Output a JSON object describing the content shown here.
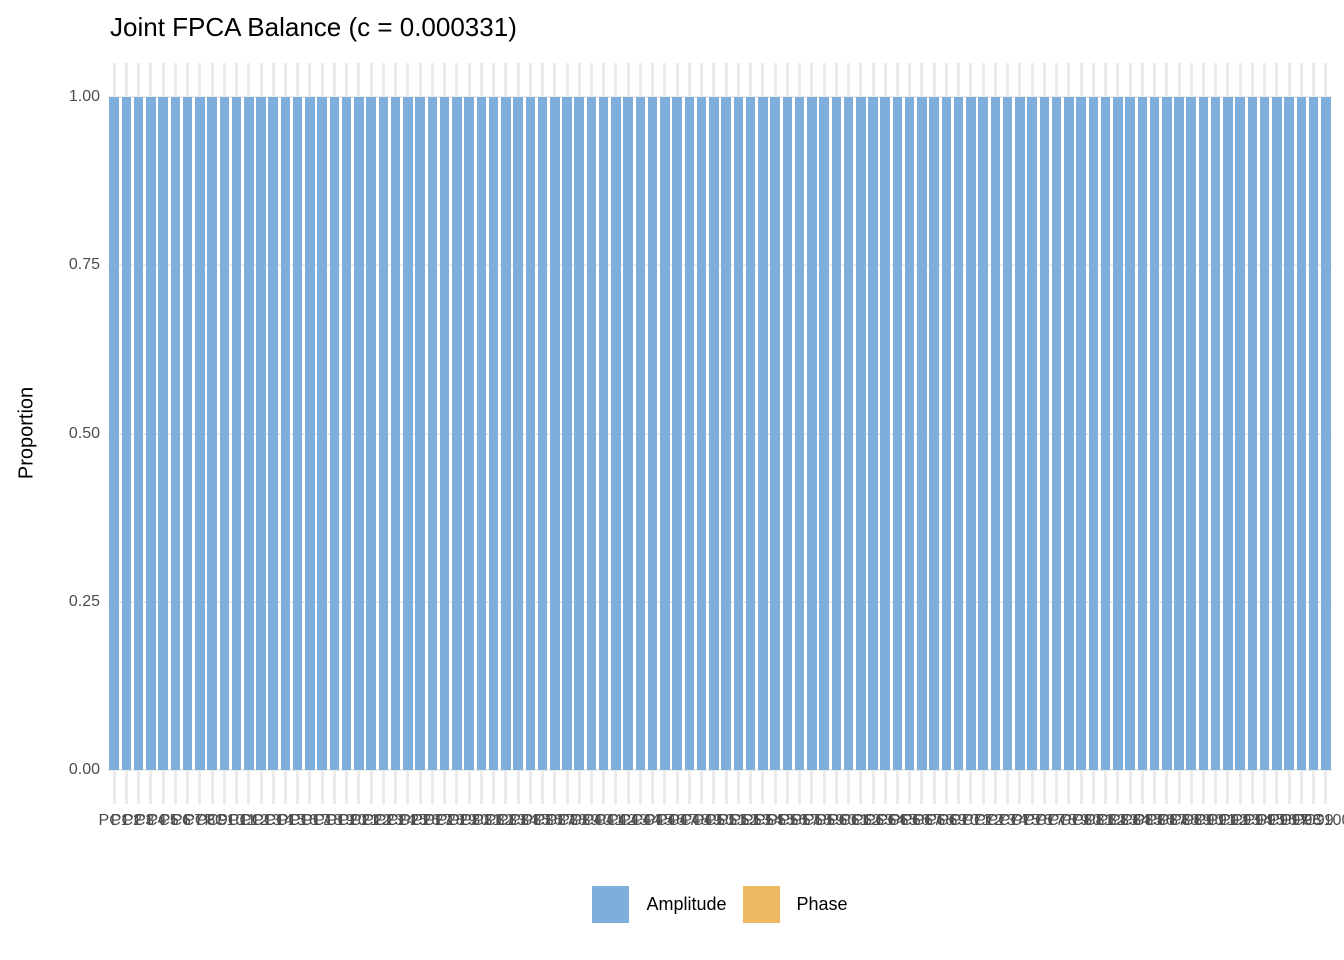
{
  "title": "Joint FPCA Balance (c = 0.000331)",
  "axes": {
    "y_title": "Proportion",
    "x_title": "",
    "y_tick_labels": [
      "0.00",
      "0.25",
      "0.50",
      "0.75",
      "1.00"
    ]
  },
  "legend": {
    "position": "bottom",
    "items": [
      {
        "label": "Amplitude",
        "color": "#7eaedc"
      },
      {
        "label": "Phase",
        "color": "#edb962"
      }
    ]
  },
  "colors": {
    "amplitude": "#7eaedc",
    "phase": "#edb962",
    "gridline": "#ebebeb",
    "tick_text": "#4d4d4d",
    "title_text": "#000000",
    "background": "#ffffff"
  },
  "chart_data": {
    "type": "bar",
    "stacked": true,
    "title": "Joint FPCA Balance (c = 0.000331)",
    "xlabel": "",
    "ylabel": "Proportion",
    "ylim": [
      0,
      1
    ],
    "y_breaks": [
      0,
      0.25,
      0.5,
      0.75,
      1
    ],
    "grid": true,
    "legend_position": "bottom",
    "categories": [
      "PC1",
      "PC2",
      "PC3",
      "PC4",
      "PC5",
      "PC6",
      "PC7",
      "PC8",
      "PC9",
      "PC10",
      "PC11",
      "PC12",
      "PC13",
      "PC14",
      "PC15",
      "PC16",
      "PC17",
      "PC18",
      "PC19",
      "PC20",
      "PC21",
      "PC22",
      "PC23",
      "PC24",
      "PC25",
      "PC26",
      "PC27",
      "PC28",
      "PC29",
      "PC30",
      "PC31",
      "PC32",
      "PC33",
      "PC34",
      "PC35",
      "PC36",
      "PC37",
      "PC38",
      "PC39",
      "PC40",
      "PC41",
      "PC42",
      "PC43",
      "PC44",
      "PC45",
      "PC46",
      "PC47",
      "PC48",
      "PC49",
      "PC50",
      "PC51",
      "PC52",
      "PC53",
      "PC54",
      "PC55",
      "PC56",
      "PC57",
      "PC58",
      "PC59",
      "PC60",
      "PC61",
      "PC62",
      "PC63",
      "PC64",
      "PC65",
      "PC66",
      "PC67",
      "PC68",
      "PC69",
      "PC70",
      "PC71",
      "PC72",
      "PC73",
      "PC74",
      "PC75",
      "PC76",
      "PC77",
      "PC78",
      "PC79",
      "PC80",
      "PC81",
      "PC82",
      "PC83",
      "PC84",
      "PC85",
      "PC86",
      "PC87",
      "PC88",
      "PC89",
      "PC90",
      "PC91",
      "PC92",
      "PC93",
      "PC94",
      "PC95",
      "PC96",
      "PC97",
      "PC98",
      "PC99",
      "PC100"
    ],
    "series": [
      {
        "name": "Amplitude",
        "color": "#7eaedc",
        "values": [
          1,
          1,
          1,
          1,
          1,
          1,
          1,
          1,
          1,
          1,
          1,
          1,
          1,
          1,
          1,
          1,
          1,
          1,
          1,
          1,
          1,
          1,
          1,
          1,
          1,
          1,
          1,
          1,
          1,
          1,
          1,
          1,
          1,
          1,
          1,
          1,
          1,
          1,
          1,
          1,
          1,
          1,
          1,
          1,
          1,
          1,
          1,
          1,
          1,
          1,
          1,
          1,
          1,
          1,
          1,
          1,
          1,
          1,
          1,
          1,
          1,
          1,
          1,
          1,
          1,
          1,
          1,
          1,
          1,
          1,
          1,
          1,
          1,
          1,
          1,
          1,
          1,
          1,
          1,
          1,
          1,
          1,
          1,
          1,
          1,
          1,
          1,
          1,
          1,
          1,
          1,
          1,
          1,
          1,
          1,
          1,
          1,
          1,
          1,
          1
        ]
      },
      {
        "name": "Phase",
        "color": "#edb962",
        "values": [
          0,
          0,
          0,
          0,
          0,
          0,
          0,
          0,
          0,
          0,
          0,
          0,
          0,
          0,
          0,
          0,
          0,
          0,
          0,
          0,
          0,
          0,
          0,
          0,
          0,
          0,
          0,
          0,
          0,
          0,
          0,
          0,
          0,
          0,
          0,
          0,
          0,
          0,
          0,
          0,
          0,
          0,
          0,
          0,
          0,
          0,
          0,
          0,
          0,
          0,
          0,
          0,
          0,
          0,
          0,
          0,
          0,
          0,
          0,
          0,
          0,
          0,
          0,
          0,
          0,
          0,
          0,
          0,
          0,
          0,
          0,
          0,
          0,
          0,
          0,
          0,
          0,
          0,
          0,
          0,
          0,
          0,
          0,
          0,
          0,
          0,
          0,
          0,
          0,
          0,
          0,
          0,
          0,
          0,
          0,
          0,
          0,
          0,
          0,
          0
        ]
      }
    ]
  }
}
